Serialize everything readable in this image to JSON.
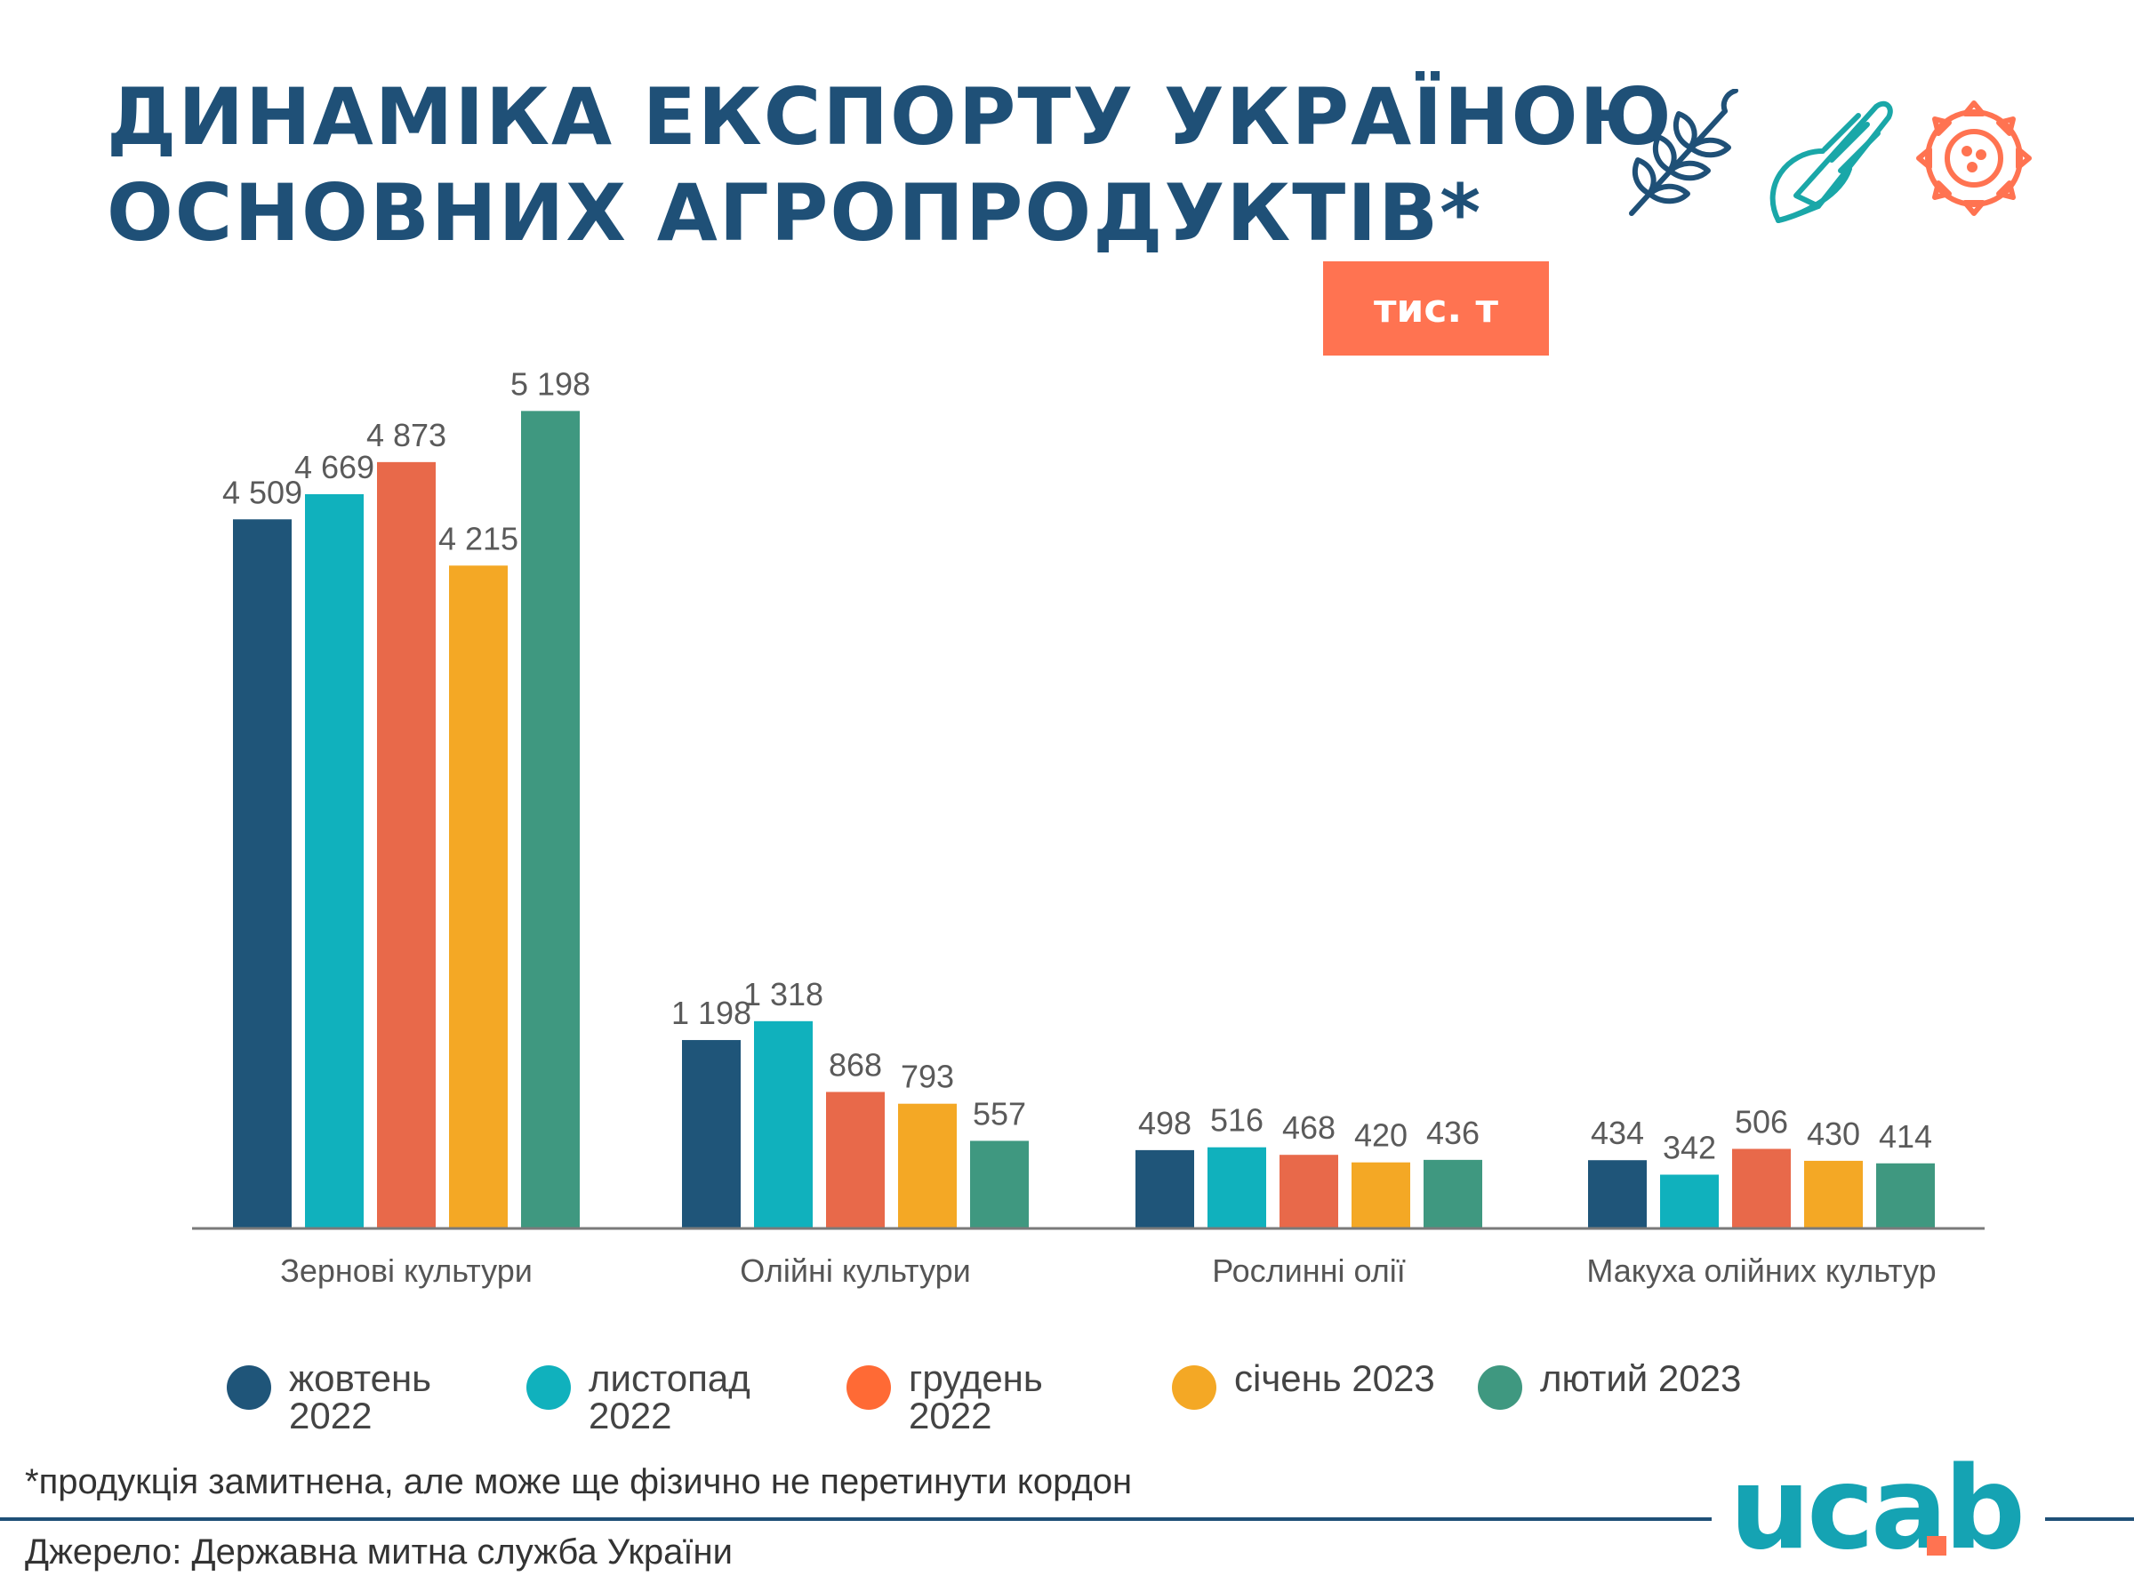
{
  "title_lines": [
    "ДИНАМІКА ЕКСПОРТУ УКРАЇНОЮ",
    "ОСНОВНИХ АГРОПРОДУКТІВ*"
  ],
  "unit": "тис. т",
  "icons": [
    "wheat-icon",
    "corn-icon",
    "sunflower-icon"
  ],
  "colors": {
    "title": "#1f5077",
    "badge": "#ff7351",
    "series": [
      "#1f5579",
      "#10b1bd",
      "#e8694a",
      "#f4a825",
      "#3f9880"
    ]
  },
  "chart_data": {
    "type": "bar",
    "categories": [
      "Зернові культури",
      "Олійні культури",
      "Рослинні олії",
      "Макуха олійних культур"
    ],
    "series": [
      {
        "name": "жовтень 2022",
        "values": [
          4509,
          1198,
          498,
          434
        ]
      },
      {
        "name": "листопад 2022",
        "values": [
          4669,
          1318,
          516,
          342
        ]
      },
      {
        "name": "грудень 2022",
        "values": [
          4873,
          868,
          468,
          506
        ]
      },
      {
        "name": "січень 2023",
        "values": [
          4215,
          793,
          420,
          430
        ]
      },
      {
        "name": "лютий 2023",
        "values": [
          5198,
          557,
          436,
          414
        ]
      }
    ],
    "data_labels": [
      [
        "4 509",
        "1 198",
        "498",
        "434"
      ],
      [
        "4 669",
        "1 318",
        "516",
        "342"
      ],
      [
        "4 873",
        "868",
        "468",
        "506"
      ],
      [
        "4 215",
        "793",
        "420",
        "430"
      ],
      [
        "5 198",
        "557",
        "436",
        "414"
      ]
    ],
    "ylim": [
      0,
      5200
    ],
    "grid": false,
    "legend_position": "bottom"
  },
  "legend": [
    {
      "label": "жовтень 2022"
    },
    {
      "label": "листопад 2022"
    },
    {
      "label": "грудень 2022"
    },
    {
      "label": "січень 2023"
    },
    {
      "label": "лютий 2023"
    }
  ],
  "footnote": "*продукція замитнена, але може ще фізично не перетинути кордон",
  "source": "Джерело: Державна митна служба України",
  "logo": "ucab"
}
